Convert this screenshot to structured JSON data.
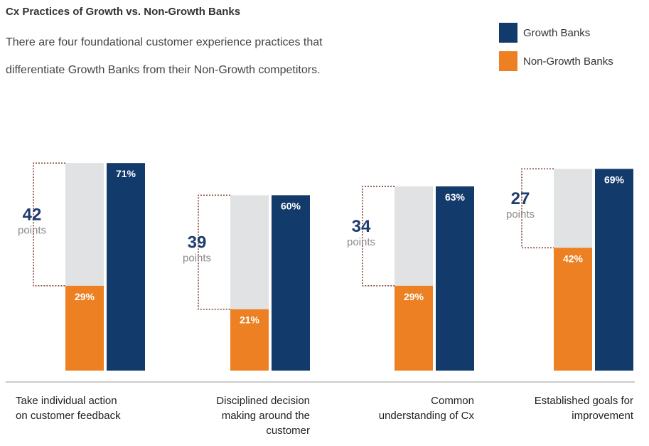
{
  "header": {
    "title": "Cx Practices of Growth vs. Non-Growth Banks",
    "subtitle_line1": "There are four foundational customer experience practices that",
    "subtitle_line2": "differentiate Growth Banks from their Non-Growth competitors."
  },
  "legend": [
    {
      "name": "Growth Banks",
      "color": "#123a6b"
    },
    {
      "name": "Non-Growth Banks",
      "color": "#ec8023"
    }
  ],
  "chart_data": {
    "type": "bar",
    "title": "Cx Practices of Growth vs. Non-Growth Banks",
    "ylim": [
      0,
      100
    ],
    "categories": [
      {
        "lines": [
          "Take individual action",
          "on customer feedback"
        ],
        "align": "start"
      },
      {
        "lines": [
          "Disciplined decision",
          "making around the",
          "customer"
        ],
        "align": "end"
      },
      {
        "lines": [
          "Common",
          "understanding of Cx"
        ],
        "align": "end"
      },
      {
        "lines": [
          "Established goals for",
          "improvement"
        ],
        "align": "end"
      }
    ],
    "series": [
      {
        "name": "Non-Growth Banks",
        "color": "#ec8023",
        "values": [
          29,
          21,
          29,
          42
        ],
        "labels": [
          "29%",
          "21%",
          "29%",
          "42%"
        ]
      },
      {
        "name": "Growth Banks",
        "color": "#123a6b",
        "values": [
          71,
          60,
          63,
          69
        ],
        "labels": [
          "71%",
          "60%",
          "63%",
          "69%"
        ]
      }
    ],
    "gaps": [
      {
        "value": "42",
        "unit": "points"
      },
      {
        "value": "39",
        "unit": "points"
      },
      {
        "value": "34",
        "unit": "points"
      },
      {
        "value": "27",
        "unit": "points"
      }
    ],
    "gap_fill_color": "#e1e2e3",
    "bracket_color": "#7a3a2a"
  }
}
